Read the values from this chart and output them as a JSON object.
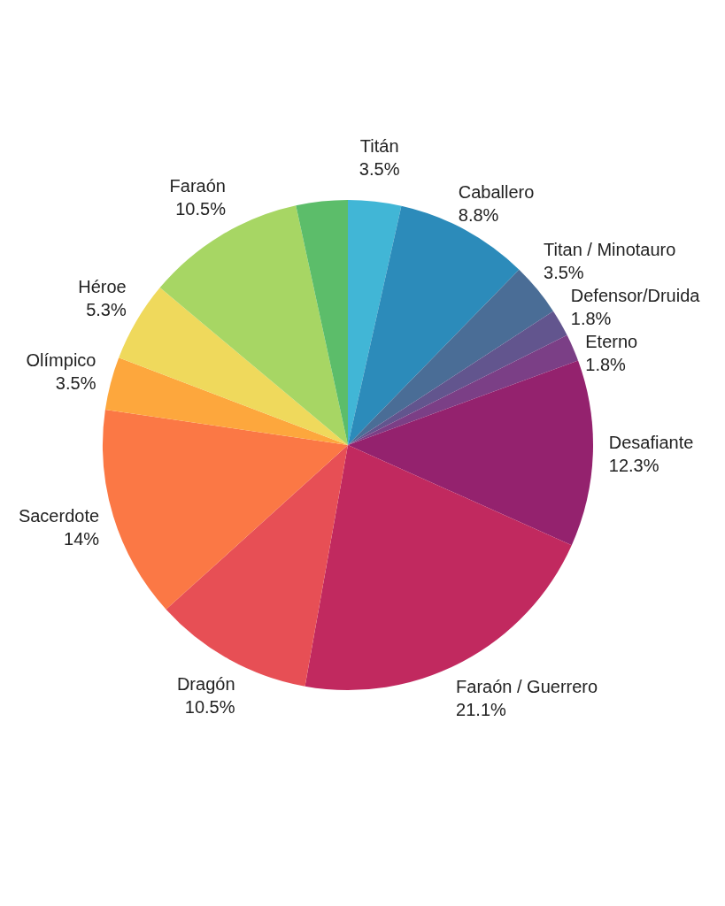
{
  "chart_data": {
    "type": "pie",
    "categories": [
      "Titán",
      "Caballero",
      "Titan / Minotauro",
      "Defensor/Druida",
      "Eterno",
      "Desafiante",
      "Faraón / Guerrero",
      "Dragón",
      "Sacerdote",
      "Olímpico",
      "Héroe",
      "Faraón",
      null
    ],
    "values": [
      3.5,
      8.8,
      3.5,
      1.8,
      1.8,
      12.3,
      21.1,
      10.5,
      14,
      3.5,
      5.3,
      10.5,
      3.4
    ],
    "value_labels": [
      "3.5%",
      "8.8%",
      "3.5%",
      "1.8%",
      "1.8%",
      "12.3%",
      "21.1%",
      "10.5%",
      "14%",
      "3.5%",
      "5.3%",
      "10.5%",
      null
    ],
    "colors": [
      "#41b6d6",
      "#2c8bba",
      "#4a6d96",
      "#62558e",
      "#7b3f86",
      "#94226e",
      "#c1295f",
      "#e74f55",
      "#fb7845",
      "#fda73d",
      "#efd95c",
      "#a7d664",
      "#5cbd6a"
    ],
    "legend": false
  }
}
